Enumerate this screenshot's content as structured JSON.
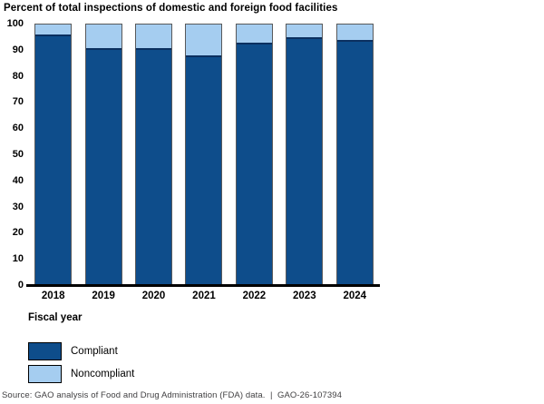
{
  "title": "Percent of total inspections of domestic and foreign food facilities",
  "chart_data": {
    "type": "bar",
    "stacked": true,
    "title": "Percent of total inspections of domestic and foreign food facilities",
    "categories": [
      "2018",
      "2019",
      "2020",
      "2021",
      "2022",
      "2023",
      "2024"
    ],
    "series": [
      {
        "name": "Compliant",
        "color": "#0E4D8B",
        "values": [
          96,
          91,
          91,
          88,
          93,
          95,
          94
        ]
      },
      {
        "name": "Noncompliant",
        "color": "#A5CDF0",
        "values": [
          4,
          9,
          9,
          12,
          7,
          5,
          6
        ]
      }
    ],
    "xlabel": "Fiscal year",
    "ylabel": "",
    "ylim": [
      0,
      100
    ],
    "yticks": [
      0,
      10,
      20,
      30,
      40,
      50,
      60,
      70,
      80,
      90,
      100
    ],
    "grid": false,
    "legend_position": "bottom-left"
  },
  "colors": {
    "compliant": "#0E4D8B",
    "noncompliant": "#A5CDF0",
    "bar_outline": "#58595B",
    "segment_divider": "#0B3060",
    "axis_line": "#000000",
    "source_text": "#414042"
  },
  "source": "Source: GAO analysis of Food and Drug Administration (FDA) data.  |  GAO-26-107394"
}
